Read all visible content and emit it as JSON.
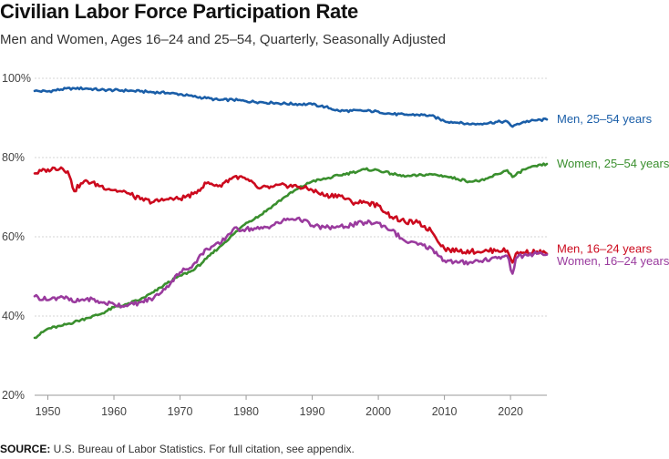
{
  "title": "Civilian Labor Force Participation Rate",
  "subtitle": "Men and Women, Ages 16–24 and 25–54, Quarterly, Seasonally Adjusted",
  "source": {
    "label": "SOURCE:",
    "text": " U.S. Bureau of Labor Statistics. For full citation, see appendix."
  },
  "chart_data": {
    "type": "line",
    "title": "Civilian Labor Force Participation Rate",
    "subtitle": "Men and Women, Ages 16–24 and 25–54, Quarterly, Seasonally Adjusted",
    "xlabel": "",
    "ylabel": "",
    "xlim": [
      1948,
      2025.5
    ],
    "ylim": [
      20,
      100
    ],
    "x_ticks": [
      1950,
      1960,
      1970,
      1980,
      1990,
      2000,
      2010,
      2020
    ],
    "y_ticks": [
      20,
      40,
      60,
      80,
      100
    ],
    "y_tick_labels": [
      "20%",
      "40%",
      "60%",
      "80%",
      "100%"
    ],
    "grid": "horizontal",
    "legend": "direct labels at right end of lines",
    "series": [
      {
        "name": "Men, 25–54 years",
        "color": "#1a5ea8",
        "x": [
          1948,
          1950,
          1952,
          1954,
          1956,
          1958,
          1960,
          1962,
          1964,
          1966,
          1968,
          1970,
          1972,
          1974,
          1976,
          1978,
          1980,
          1982,
          1984,
          1986,
          1988,
          1990,
          1992,
          1994,
          1996,
          1998,
          2000,
          2002,
          2004,
          2006,
          2008,
          2010,
          2012,
          2014,
          2016,
          2018,
          2019.5,
          2020.3,
          2020.8,
          2022,
          2024,
          2025.5
        ],
        "values": [
          96.8,
          96.7,
          97.2,
          97.5,
          97.4,
          97.1,
          97.0,
          96.9,
          96.7,
          96.5,
          96.3,
          96.0,
          95.4,
          95.0,
          94.5,
          94.6,
          94.2,
          94.0,
          93.8,
          93.6,
          93.5,
          93.4,
          92.8,
          91.8,
          91.8,
          91.8,
          91.6,
          91.0,
          90.8,
          90.8,
          90.6,
          89.2,
          88.8,
          88.4,
          88.6,
          89.0,
          89.1,
          87.8,
          88.3,
          89.0,
          89.4,
          89.6
        ]
      },
      {
        "name": "Women, 25–54 years",
        "color": "#3a8f2e",
        "x": [
          1948,
          1950,
          1952,
          1954,
          1956,
          1958,
          1960,
          1962,
          1964,
          1966,
          1968,
          1970,
          1972,
          1974,
          1976,
          1978,
          1980,
          1982,
          1984,
          1986,
          1988,
          1990,
          1992,
          1994,
          1996,
          1998,
          2000,
          2002,
          2004,
          2006,
          2008,
          2010,
          2012,
          2014,
          2016,
          2018,
          2019.5,
          2020.3,
          2020.8,
          2022,
          2024,
          2025.5
        ],
        "values": [
          34.5,
          36.8,
          37.5,
          38.5,
          39.5,
          40.5,
          42.2,
          43.0,
          44.2,
          46.0,
          48.2,
          50.2,
          51.5,
          54.5,
          57.5,
          60.5,
          63.5,
          65.3,
          67.8,
          70.2,
          72.3,
          74.0,
          74.6,
          75.5,
          76.2,
          77.0,
          76.8,
          75.9,
          75.2,
          75.5,
          75.8,
          75.3,
          74.6,
          73.9,
          74.3,
          75.8,
          76.8,
          75.1,
          75.6,
          77.0,
          77.8,
          78.4
        ]
      },
      {
        "name": "Men, 16–24 years",
        "color": "#cc0a1e",
        "x": [
          1948,
          1950,
          1952,
          1953,
          1954,
          1955,
          1956,
          1958,
          1960,
          1962,
          1964,
          1966,
          1968,
          1970,
          1972,
          1974,
          1976,
          1978,
          1979,
          1980,
          1982,
          1984,
          1986,
          1988,
          1990,
          1992,
          1994,
          1996,
          1998,
          2000,
          2002,
          2004,
          2006,
          2008,
          2010,
          2012,
          2014,
          2016,
          2018,
          2019.5,
          2020.3,
          2020.8,
          2022,
          2024,
          2025.5
        ],
        "values": [
          76.0,
          77.0,
          77.5,
          76.5,
          71.5,
          73.5,
          74.0,
          72.8,
          71.8,
          71.0,
          69.5,
          68.8,
          69.5,
          69.6,
          70.8,
          73.5,
          73.0,
          75.0,
          75.2,
          74.5,
          72.2,
          72.6,
          73.0,
          72.6,
          71.8,
          70.3,
          70.6,
          68.7,
          68.7,
          67.9,
          65.0,
          63.8,
          63.6,
          61.5,
          57.0,
          56.4,
          56.3,
          56.4,
          56.6,
          56.5,
          53.5,
          55.7,
          56.0,
          56.3,
          55.7
        ]
      },
      {
        "name": "Women, 16–24 years",
        "color": "#9a3b9e",
        "x": [
          1948,
          1950,
          1952,
          1954,
          1956,
          1958,
          1960,
          1962,
          1964,
          1966,
          1968,
          1970,
          1972,
          1974,
          1976,
          1978,
          1980,
          1982,
          1984,
          1986,
          1988,
          1990,
          1992,
          1994,
          1996,
          1998,
          2000,
          2002,
          2004,
          2006,
          2008,
          2010,
          2012,
          2014,
          2016,
          2018,
          2019.5,
          2020.3,
          2020.8,
          2022,
          2024,
          2025.5
        ],
        "values": [
          45.0,
          44.0,
          45.0,
          43.5,
          44.5,
          43.5,
          43.0,
          42.5,
          43.5,
          44.5,
          47.5,
          51.0,
          53.0,
          57.0,
          58.2,
          61.8,
          62.0,
          62.0,
          62.9,
          64.2,
          64.8,
          62.8,
          62.3,
          62.5,
          63.0,
          63.6,
          63.5,
          61.6,
          59.0,
          58.0,
          57.2,
          54.0,
          53.5,
          53.6,
          54.2,
          54.6,
          55.2,
          50.7,
          54.5,
          55.3,
          55.7,
          55.5
        ]
      }
    ]
  }
}
